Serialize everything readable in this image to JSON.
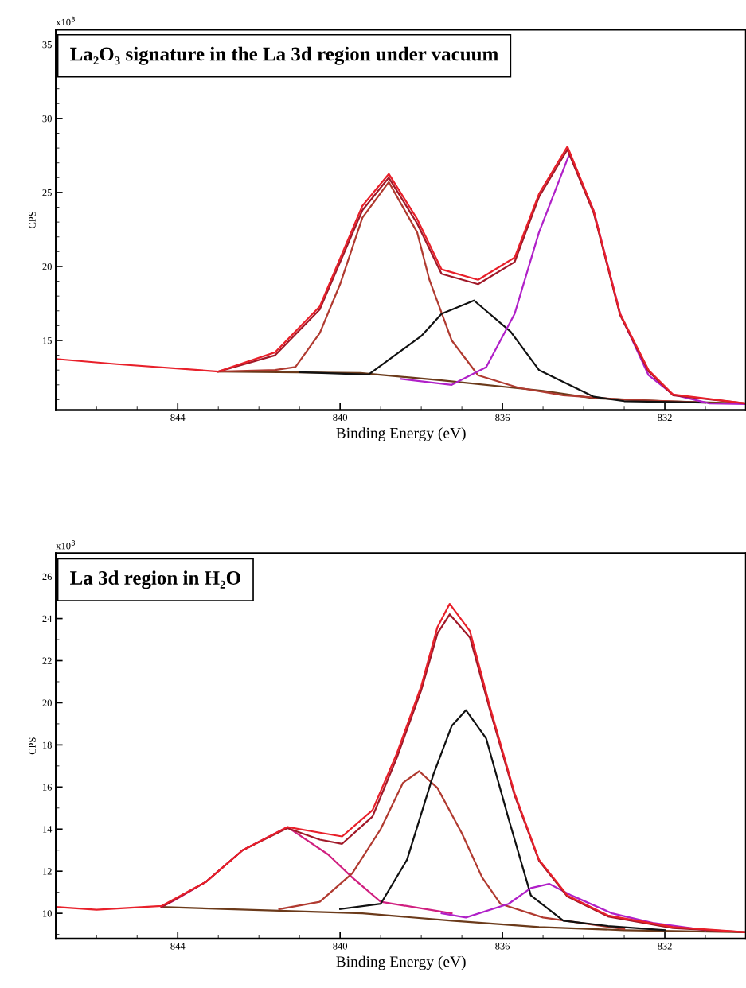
{
  "chart_data": [
    {
      "type": "line",
      "title": "La₂O₃ signature in the La 3d region under vacuum",
      "xlabel": "Binding Energy (eV)",
      "ylabel": "CPS",
      "annotations": [
        "x10$^{3}$"
      ],
      "xlim": [
        847,
        830
      ],
      "ylim": [
        10.3,
        36
      ],
      "xticks": [
        {
          "value": 846,
          "label": null
        },
        {
          "value": 845,
          "label": null
        },
        844,
        {
          "value": 843,
          "label": null
        },
        {
          "value": 842,
          "label": null
        },
        {
          "value": 841,
          "label": null
        },
        840,
        {
          "value": 839,
          "label": null
        },
        {
          "value": 838,
          "label": null
        },
        {
          "value": 837,
          "label": null
        },
        836,
        {
          "value": 835,
          "label": null
        },
        {
          "value": 834,
          "label": null
        },
        {
          "value": 833,
          "label": null
        },
        832,
        {
          "value": 831,
          "label": null
        }
      ],
      "yticks": [
        {
          "value": 11,
          "label": null
        },
        {
          "value": 12,
          "label": null
        },
        {
          "value": 13,
          "label": null
        },
        {
          "value": 14,
          "label": null
        },
        15,
        {
          "value": 16,
          "label": null
        },
        {
          "value": 17,
          "label": null
        },
        {
          "value": 18,
          "label": null
        },
        {
          "value": 19,
          "label": null
        },
        20,
        {
          "value": 21,
          "label": null
        },
        {
          "value": 22,
          "label": null
        },
        {
          "value": 23,
          "label": null
        },
        {
          "value": 24,
          "label": null
        },
        25,
        {
          "value": 26,
          "label": null
        },
        {
          "value": 27,
          "label": null
        },
        {
          "value": 28,
          "label": null
        },
        {
          "value": 29,
          "label": null
        },
        30,
        {
          "value": 31,
          "label": null
        },
        {
          "value": 32,
          "label": null
        },
        {
          "value": 33,
          "label": null
        },
        {
          "value": 34,
          "label": null
        },
        35
      ],
      "grid": false,
      "legend": false,
      "marker": "none",
      "line_style": "solid",
      "series": [
        {
          "color": "#6b3a1a",
          "x": [
            843.0,
            839.5,
            837.5,
            835.0,
            833.75,
            832.0,
            830.0
          ],
          "values": [
            12.9,
            12.8,
            12.3,
            11.6,
            11.1,
            10.9,
            10.75
          ]
        },
        {
          "color": "#b03a30",
          "x": [
            843.0,
            841.6,
            841.1,
            840.5,
            840.0,
            839.45,
            838.8,
            838.1,
            837.8,
            837.25,
            836.6,
            835.6,
            834.5,
            833.0,
            831.0
          ],
          "values": [
            12.9,
            13.0,
            13.2,
            15.5,
            18.8,
            23.3,
            25.7,
            22.3,
            19.1,
            15.0,
            12.65,
            11.8,
            11.3,
            11.0,
            10.8
          ]
        },
        {
          "color": "#111111",
          "x": [
            841.0,
            839.3,
            838.0,
            837.5,
            836.7,
            835.8,
            835.1,
            833.75,
            833.0,
            831.0
          ],
          "values": [
            12.85,
            12.7,
            15.3,
            16.8,
            17.7,
            15.6,
            13.0,
            11.2,
            10.9,
            10.8
          ]
        },
        {
          "color": "#b020c8",
          "x": [
            838.5,
            837.25,
            836.4,
            835.7,
            835.1,
            834.35,
            833.75,
            833.1,
            832.4,
            831.8,
            830.9,
            830.0
          ],
          "values": [
            12.4,
            12.0,
            13.2,
            16.8,
            22.3,
            27.6,
            23.75,
            16.8,
            12.65,
            11.35,
            10.75,
            10.7
          ]
        },
        {
          "color": "#a01828",
          "x": [
            843.0,
            841.6,
            840.5,
            839.45,
            838.8,
            838.1,
            837.5,
            836.6,
            835.7,
            835.1,
            834.4,
            833.75,
            833.1,
            832.4,
            831.8,
            830.0
          ],
          "values": [
            12.9,
            14.0,
            17.1,
            23.8,
            26.0,
            22.9,
            19.5,
            18.8,
            20.3,
            24.7,
            27.9,
            23.6,
            16.7,
            12.9,
            11.3,
            10.75
          ]
        },
        {
          "color": "#e8202a",
          "x": [
            847.0,
            845.5,
            843.0,
            841.6,
            840.5,
            839.45,
            838.8,
            838.1,
            837.5,
            836.6,
            835.7,
            835.1,
            834.4,
            833.75,
            833.1,
            832.4,
            831.8,
            830.0
          ],
          "values": [
            13.75,
            13.4,
            12.9,
            14.2,
            17.3,
            24.1,
            26.25,
            23.2,
            19.8,
            19.1,
            20.6,
            24.9,
            28.1,
            23.75,
            16.8,
            13.0,
            11.35,
            10.75
          ]
        }
      ]
    },
    {
      "type": "line",
      "title": "La 3d region in H₂O",
      "xlabel": "Binding Energy (eV)",
      "ylabel": "CPS",
      "annotations": [
        "x10$^{3}$"
      ],
      "xlim": [
        847,
        830
      ],
      "ylim": [
        8.8,
        27.1
      ],
      "xticks": [
        {
          "value": 846,
          "label": null
        },
        {
          "value": 845,
          "label": null
        },
        844,
        {
          "value": 843,
          "label": null
        },
        {
          "value": 842,
          "label": null
        },
        {
          "value": 841,
          "label": null
        },
        840,
        {
          "value": 839,
          "label": null
        },
        {
          "value": 838,
          "label": null
        },
        {
          "value": 837,
          "label": null
        },
        836,
        {
          "value": 835,
          "label": null
        },
        {
          "value": 834,
          "label": null
        },
        {
          "value": 833,
          "label": null
        },
        832,
        {
          "value": 831,
          "label": null
        }
      ],
      "yticks": [
        {
          "value": 9,
          "label": null
        },
        10,
        {
          "value": 11,
          "label": null
        },
        12,
        {
          "value": 13,
          "label": null
        },
        14,
        {
          "value": 15,
          "label": null
        },
        16,
        {
          "value": 17,
          "label": null
        },
        18,
        {
          "value": 19,
          "label": null
        },
        20,
        {
          "value": 21,
          "label": null
        },
        22,
        {
          "value": 23,
          "label": null
        },
        24,
        {
          "value": 25,
          "label": null
        },
        26
      ],
      "grid": false,
      "legend": false,
      "marker": "none",
      "line_style": "solid",
      "series": [
        {
          "color": "#6b3a1a",
          "x": [
            844.4,
            839.45,
            837.25,
            835.1,
            833.0,
            830.0
          ],
          "values": [
            10.3,
            10.0,
            9.65,
            9.35,
            9.2,
            9.1
          ]
        },
        {
          "color": "#d02080",
          "x": [
            844.4,
            844.1,
            843.3,
            842.4,
            841.3,
            840.3,
            839.7,
            839.0,
            837.25
          ],
          "values": [
            10.3,
            10.6,
            11.5,
            13.0,
            14.1,
            12.8,
            11.7,
            10.55,
            10.0
          ]
        },
        {
          "color": "#b03a30",
          "x": [
            841.5,
            840.5,
            839.7,
            839.0,
            838.45,
            838.05,
            837.6,
            837.0,
            836.5,
            836.05,
            835.0,
            833.0
          ],
          "values": [
            10.2,
            10.55,
            11.9,
            14.0,
            16.2,
            16.75,
            15.95,
            13.8,
            11.7,
            10.45,
            9.8,
            9.25
          ]
        },
        {
          "color": "#111111",
          "x": [
            840.0,
            839.0,
            838.35,
            837.7,
            837.25,
            836.9,
            836.4,
            835.85,
            835.3,
            834.5,
            833.4,
            832.0
          ],
          "values": [
            10.2,
            10.45,
            12.55,
            16.6,
            18.9,
            19.65,
            18.3,
            14.5,
            10.85,
            9.65,
            9.4,
            9.2
          ]
        },
        {
          "color": "#b020c8",
          "x": [
            837.5,
            836.9,
            835.85,
            835.3,
            834.85,
            834.3,
            833.3,
            832.3,
            831.0
          ],
          "values": [
            10.0,
            9.8,
            10.45,
            11.2,
            11.4,
            10.85,
            10.0,
            9.55,
            9.2
          ]
        },
        {
          "color": "#a01828",
          "x": [
            844.4,
            843.3,
            842.4,
            841.3,
            840.5,
            839.95,
            839.2,
            838.6,
            838.0,
            837.6,
            837.3,
            836.8,
            836.3,
            835.7,
            835.1,
            834.4,
            833.4,
            831.8,
            830.0
          ],
          "values": [
            10.3,
            11.5,
            13.0,
            14.05,
            13.5,
            13.3,
            14.6,
            17.4,
            20.6,
            23.3,
            24.2,
            23.1,
            19.6,
            15.6,
            12.5,
            10.8,
            9.85,
            9.3,
            9.1
          ]
        },
        {
          "color": "#e8202a",
          "x": [
            847.0,
            846.0,
            844.4,
            843.3,
            842.4,
            841.3,
            840.5,
            839.95,
            839.2,
            838.6,
            838.0,
            837.6,
            837.3,
            836.8,
            836.3,
            835.7,
            835.1,
            834.4,
            833.4,
            831.8,
            830.0
          ],
          "values": [
            10.3,
            10.17,
            10.35,
            11.5,
            13.0,
            14.1,
            13.83,
            13.65,
            14.9,
            17.6,
            20.8,
            23.6,
            24.7,
            23.4,
            19.75,
            15.7,
            12.55,
            10.85,
            9.9,
            9.35,
            9.1
          ]
        }
      ]
    }
  ]
}
